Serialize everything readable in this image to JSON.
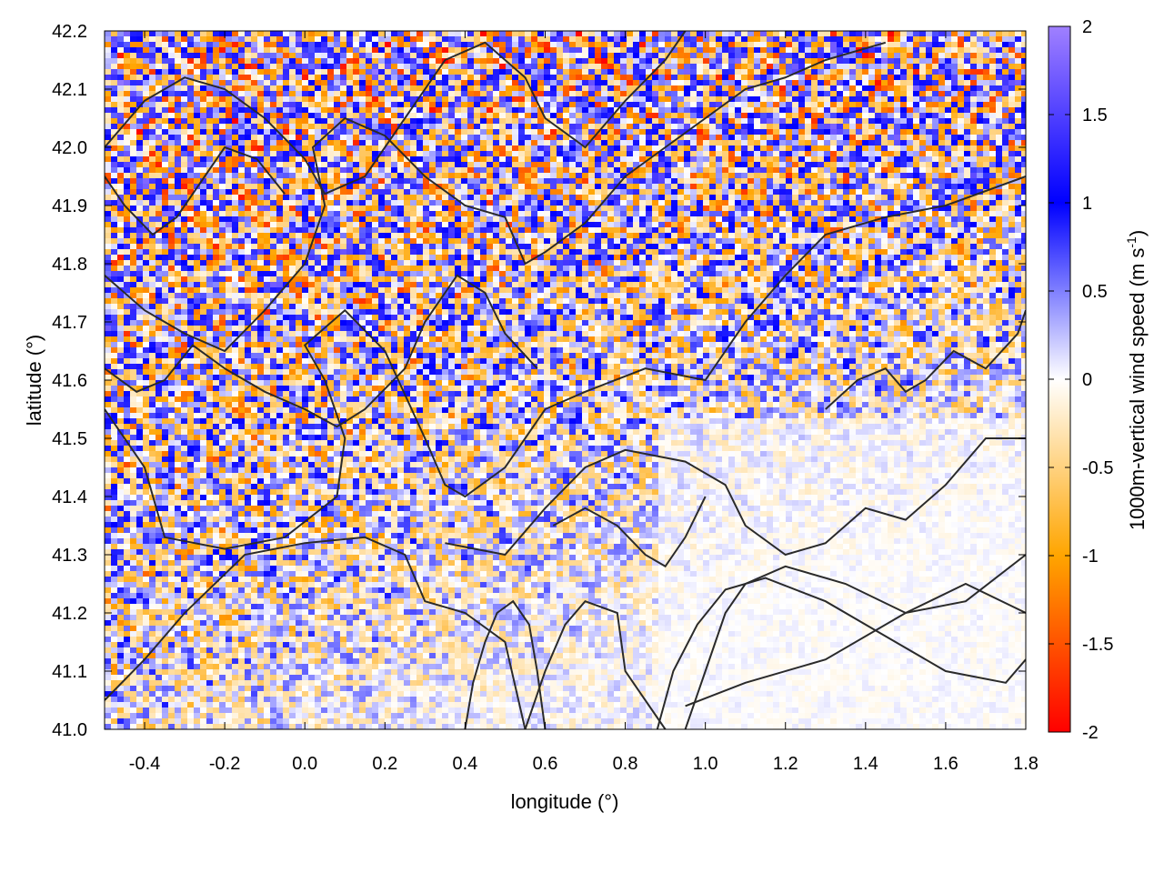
{
  "chart_data": {
    "type": "heatmap",
    "xlabel": "longitude (°)",
    "ylabel": "latitude (°)",
    "xlim": [
      -0.5,
      1.8
    ],
    "ylim": [
      41.0,
      42.2
    ],
    "xticks": [
      -0.4,
      -0.2,
      0.0,
      0.2,
      0.4,
      0.6,
      0.8,
      1.0,
      1.2,
      1.4,
      1.6,
      1.8
    ],
    "xtick_labels": [
      "-0.4",
      "-0.2",
      "0.0",
      "0.2",
      "0.4",
      "0.6",
      "0.8",
      "1.0",
      "1.2",
      "1.4",
      "1.6",
      "1.8"
    ],
    "yticks": [
      41.0,
      41.1,
      41.2,
      41.3,
      41.4,
      41.5,
      41.6,
      41.7,
      41.8,
      41.9,
      42.0,
      42.1,
      42.2
    ],
    "ytick_labels": [
      "41.0",
      "41.1",
      "41.2",
      "41.3",
      "41.4",
      "41.5",
      "41.6",
      "41.7",
      "41.8",
      "41.9",
      "42.0",
      "42.1",
      "42.2"
    ],
    "colorbar": {
      "label": "1000m-vertical wind speed (m s",
      "label_sup": "-1",
      "label_tail": ")",
      "range": [
        -2,
        2
      ],
      "ticks": [
        2,
        1.5,
        1,
        0.5,
        0,
        -0.5,
        -1,
        -1.5,
        -2
      ],
      "tick_labels": [
        "2",
        "1.5",
        "1",
        "0.5",
        "0",
        "-0.5",
        "-1",
        "-1.5",
        "-2"
      ],
      "stops": [
        {
          "value": -2,
          "color": "#ff0000"
        },
        {
          "value": -1,
          "color": "#ffa500"
        },
        {
          "value": 0,
          "color": "#ffffff"
        },
        {
          "value": 1,
          "color": "#0000ff"
        },
        {
          "value": 2,
          "color": "#a080ff"
        }
      ]
    },
    "contours": [
      {
        "name": "contour-1",
        "points": [
          [
            -0.5,
            41.05
          ],
          [
            -0.4,
            41.12
          ],
          [
            -0.3,
            41.2
          ],
          [
            -0.15,
            41.3
          ],
          [
            0.0,
            41.32
          ],
          [
            0.15,
            41.33
          ],
          [
            0.25,
            41.3
          ],
          [
            0.3,
            41.22
          ],
          [
            0.4,
            41.2
          ],
          [
            0.5,
            41.15
          ],
          [
            0.55,
            41.0
          ]
        ]
      },
      {
        "name": "contour-2",
        "points": [
          [
            -0.5,
            41.55
          ],
          [
            -0.4,
            41.45
          ],
          [
            -0.35,
            41.33
          ],
          [
            -0.2,
            41.31
          ],
          [
            -0.05,
            41.33
          ],
          [
            0.08,
            41.4
          ],
          [
            0.1,
            41.5
          ],
          [
            0.05,
            41.6
          ],
          [
            0.0,
            41.66
          ],
          [
            0.1,
            41.72
          ],
          [
            0.2,
            41.65
          ],
          [
            0.3,
            41.5
          ],
          [
            0.35,
            41.42
          ],
          [
            0.4,
            41.4
          ],
          [
            0.5,
            41.45
          ],
          [
            0.55,
            41.5
          ],
          [
            0.6,
            41.55
          ],
          [
            0.7,
            41.58
          ],
          [
            0.85,
            41.62
          ],
          [
            1.0,
            41.6
          ],
          [
            1.1,
            41.7
          ],
          [
            1.2,
            41.78
          ],
          [
            1.3,
            41.85
          ],
          [
            1.45,
            41.88
          ],
          [
            1.6,
            41.9
          ],
          [
            1.8,
            41.95
          ]
        ]
      },
      {
        "name": "contour-3",
        "points": [
          [
            -0.5,
            41.78
          ],
          [
            -0.4,
            41.72
          ],
          [
            -0.3,
            41.68
          ],
          [
            -0.2,
            41.65
          ],
          [
            -0.1,
            41.72
          ],
          [
            0.0,
            41.8
          ],
          [
            0.05,
            41.9
          ],
          [
            0.02,
            42.0
          ],
          [
            0.1,
            42.05
          ],
          [
            0.2,
            42.02
          ],
          [
            0.3,
            41.95
          ],
          [
            0.4,
            41.9
          ],
          [
            0.5,
            41.88
          ],
          [
            0.55,
            41.8
          ],
          [
            0.6,
            41.82
          ],
          [
            0.7,
            41.87
          ],
          [
            0.8,
            41.95
          ],
          [
            0.9,
            42.0
          ],
          [
            1.0,
            42.05
          ],
          [
            1.1,
            42.1
          ],
          [
            1.2,
            42.12
          ],
          [
            1.3,
            42.15
          ],
          [
            1.45,
            42.18
          ]
        ]
      },
      {
        "name": "contour-4",
        "points": [
          [
            0.35,
            41.32
          ],
          [
            0.5,
            41.3
          ],
          [
            0.6,
            41.38
          ],
          [
            0.7,
            41.45
          ],
          [
            0.8,
            41.48
          ],
          [
            0.95,
            41.46
          ],
          [
            1.05,
            41.42
          ],
          [
            1.1,
            41.35
          ],
          [
            1.2,
            41.3
          ],
          [
            1.3,
            41.32
          ],
          [
            1.4,
            41.38
          ],
          [
            1.5,
            41.36
          ],
          [
            1.6,
            41.42
          ],
          [
            1.7,
            41.5
          ],
          [
            1.8,
            41.5
          ]
        ]
      },
      {
        "name": "contour-5",
        "points": [
          [
            0.95,
            41.0
          ],
          [
            1.0,
            41.1
          ],
          [
            1.05,
            41.2
          ],
          [
            1.1,
            41.25
          ],
          [
            1.2,
            41.28
          ],
          [
            1.35,
            41.25
          ],
          [
            1.5,
            41.2
          ],
          [
            1.65,
            41.22
          ],
          [
            1.8,
            41.3
          ]
        ]
      },
      {
        "name": "contour-6",
        "points": [
          [
            0.88,
            41.0
          ],
          [
            0.92,
            41.1
          ],
          [
            0.98,
            41.18
          ],
          [
            1.05,
            41.24
          ],
          [
            1.15,
            41.26
          ],
          [
            1.3,
            41.22
          ],
          [
            1.45,
            41.16
          ],
          [
            1.6,
            41.1
          ],
          [
            1.75,
            41.08
          ],
          [
            1.8,
            41.12
          ]
        ]
      },
      {
        "name": "contour-7",
        "points": [
          [
            0.55,
            41.0
          ],
          [
            0.6,
            41.1
          ],
          [
            0.65,
            41.18
          ],
          [
            0.7,
            41.22
          ],
          [
            0.78,
            41.2
          ],
          [
            0.8,
            41.1
          ],
          [
            0.85,
            41.05
          ],
          [
            0.9,
            41.0
          ]
        ]
      },
      {
        "name": "contour-8",
        "points": [
          [
            0.95,
            41.04
          ],
          [
            1.1,
            41.08
          ],
          [
            1.3,
            41.12
          ],
          [
            1.5,
            41.2
          ],
          [
            1.65,
            41.25
          ],
          [
            1.8,
            41.2
          ]
        ]
      },
      {
        "name": "contour-9",
        "points": [
          [
            -0.5,
            42.0
          ],
          [
            -0.4,
            42.08
          ],
          [
            -0.3,
            42.12
          ],
          [
            -0.2,
            42.1
          ],
          [
            -0.1,
            42.05
          ],
          [
            0.0,
            41.98
          ],
          [
            0.05,
            41.92
          ],
          [
            0.15,
            41.95
          ],
          [
            0.25,
            42.05
          ],
          [
            0.35,
            42.15
          ],
          [
            0.45,
            42.18
          ],
          [
            0.55,
            42.12
          ],
          [
            0.6,
            42.05
          ],
          [
            0.7,
            42.0
          ],
          [
            0.8,
            42.08
          ],
          [
            0.9,
            42.15
          ],
          [
            0.95,
            42.2
          ]
        ]
      },
      {
        "name": "contour-10",
        "points": [
          [
            -0.5,
            41.62
          ],
          [
            -0.42,
            41.58
          ],
          [
            -0.35,
            41.6
          ],
          [
            -0.28,
            41.66
          ],
          [
            -0.2,
            41.62
          ],
          [
            -0.1,
            41.58
          ],
          [
            0.0,
            41.55
          ],
          [
            0.08,
            41.52
          ],
          [
            0.15,
            41.55
          ],
          [
            0.25,
            41.62
          ],
          [
            0.3,
            41.7
          ],
          [
            0.38,
            41.78
          ],
          [
            0.45,
            41.75
          ],
          [
            0.5,
            41.68
          ],
          [
            0.58,
            41.62
          ]
        ]
      },
      {
        "name": "contour-11",
        "points": [
          [
            0.62,
            41.35
          ],
          [
            0.7,
            41.38
          ],
          [
            0.78,
            41.35
          ],
          [
            0.85,
            41.3
          ],
          [
            0.9,
            41.28
          ],
          [
            0.95,
            41.33
          ],
          [
            1.0,
            41.4
          ]
        ]
      },
      {
        "name": "contour-12",
        "points": [
          [
            1.3,
            41.55
          ],
          [
            1.38,
            41.6
          ],
          [
            1.45,
            41.62
          ],
          [
            1.5,
            41.58
          ],
          [
            1.55,
            41.6
          ],
          [
            1.62,
            41.65
          ],
          [
            1.7,
            41.62
          ],
          [
            1.78,
            41.68
          ],
          [
            1.8,
            41.72
          ]
        ]
      },
      {
        "name": "contour-13",
        "points": [
          [
            0.4,
            41.0
          ],
          [
            0.42,
            41.08
          ],
          [
            0.45,
            41.15
          ],
          [
            0.48,
            41.2
          ],
          [
            0.52,
            41.22
          ],
          [
            0.56,
            41.18
          ],
          [
            0.58,
            41.1
          ],
          [
            0.6,
            41.0
          ]
        ]
      },
      {
        "name": "contour-14",
        "points": [
          [
            -0.5,
            41.95
          ],
          [
            -0.45,
            41.9
          ],
          [
            -0.38,
            41.85
          ],
          [
            -0.32,
            41.88
          ],
          [
            -0.25,
            41.95
          ],
          [
            -0.2,
            42.0
          ],
          [
            -0.12,
            41.98
          ],
          [
            -0.05,
            41.92
          ]
        ]
      }
    ]
  }
}
